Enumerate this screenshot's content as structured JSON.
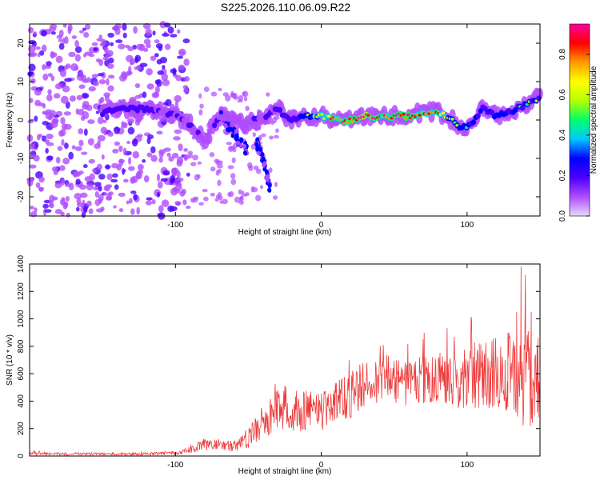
{
  "title": "S225.2026.110.06.09.R22",
  "chart_data": [
    {
      "type": "heatmap",
      "title": "S225.2026.110.06.09.R22",
      "xlabel": "Height of straight line (km)",
      "ylabel": "Frequency (Hz)",
      "xlim": [
        -200,
        150
      ],
      "ylim": [
        -25,
        25
      ],
      "xticks": [
        -100,
        0,
        100
      ],
      "yticks": [
        -20,
        -10,
        0,
        10,
        20
      ],
      "colorbar": {
        "label": "Normalized spectral amplitude",
        "range": [
          0,
          0.95
        ],
        "ticks": [
          0.0,
          0.2,
          0.4,
          0.6,
          0.8
        ],
        "colors": [
          "#e6d9ff",
          "#b04cff",
          "#4a00ff",
          "#0000ff",
          "#00c8ff",
          "#00ff6e",
          "#b4ff00",
          "#ffff00",
          "#ff9a00",
          "#ff0000",
          "#ff00a0"
        ]
      },
      "ridge": {
        "x": [
          -200,
          -190,
          -180,
          -170,
          -160,
          -150,
          -140,
          -130,
          -120,
          -110,
          -100,
          -90,
          -85,
          -80,
          -75,
          -70,
          -65,
          -60,
          -55,
          -50,
          -45,
          -40,
          -35,
          -30,
          -25,
          -20,
          -10,
          0,
          10,
          20,
          30,
          40,
          50,
          60,
          70,
          80,
          90,
          95,
          100,
          105,
          110,
          120,
          130,
          140,
          150
        ],
        "y": [
          2,
          1.5,
          1,
          1.5,
          2,
          2,
          3,
          3,
          3,
          2,
          1,
          -1,
          -3,
          -6,
          -2,
          1,
          1,
          0,
          -1,
          -1,
          0,
          0,
          2,
          3,
          1,
          0,
          1,
          1,
          0,
          0,
          1,
          1,
          1,
          1,
          2,
          2,
          0,
          -2,
          -2,
          0,
          3,
          1,
          2,
          4,
          6
        ],
        "strength": [
          0.25,
          0.25,
          0.25,
          0.3,
          0.3,
          0.3,
          0.35,
          0.35,
          0.35,
          0.3,
          0.25,
          0.25,
          0.3,
          0.25,
          0.25,
          0.25,
          0.25,
          0.2,
          0.2,
          0.25,
          0.3,
          0.3,
          0.3,
          0.3,
          0.35,
          0.4,
          0.5,
          0.7,
          0.85,
          0.9,
          0.9,
          0.88,
          0.9,
          0.85,
          0.8,
          0.85,
          0.6,
          0.5,
          0.5,
          0.45,
          0.4,
          0.45,
          0.45,
          0.5,
          0.5
        ]
      },
      "branches": [
        {
          "x": [
            -70,
            -60,
            -55,
            -50
          ],
          "y": [
            1,
            -3,
            -6,
            -8
          ]
        },
        {
          "x": [
            -45,
            -40,
            -37,
            -35
          ],
          "y": [
            -5,
            -10,
            -15,
            -18
          ]
        }
      ]
    },
    {
      "type": "line",
      "xlabel": "Height of straight line (km)",
      "ylabel": "SNR (10 * v/v)",
      "xlim": [
        -200,
        150
      ],
      "ylim": [
        0,
        1400
      ],
      "xticks": [
        -100,
        0,
        100
      ],
      "yticks": [
        0,
        200,
        400,
        600,
        800,
        1000,
        1200,
        1400
      ],
      "color": "#ee3b3b",
      "series": [
        {
          "name": "SNR",
          "x": [
            -200,
            -180,
            -160,
            -140,
            -120,
            -110,
            -100,
            -90,
            -80,
            -70,
            -60,
            -50,
            -40,
            -30,
            -20,
            -10,
            0,
            10,
            20,
            30,
            40,
            50,
            60,
            70,
            80,
            90,
            100,
            110,
            120,
            130,
            140,
            150
          ],
          "y": [
            20,
            15,
            15,
            15,
            15,
            18,
            25,
            45,
            90,
            85,
            70,
            130,
            250,
            330,
            320,
            330,
            330,
            400,
            440,
            520,
            560,
            560,
            530,
            550,
            600,
            560,
            580,
            600,
            600,
            620,
            560,
            570
          ],
          "spread": [
            15,
            10,
            10,
            10,
            10,
            12,
            15,
            25,
            50,
            40,
            40,
            80,
            120,
            150,
            160,
            150,
            150,
            160,
            170,
            180,
            180,
            180,
            170,
            180,
            200,
            220,
            240,
            250,
            260,
            300,
            380,
            380
          ],
          "peaks": [
            [
              118,
              780
            ],
            [
              126,
              700
            ],
            [
              128,
              900
            ],
            [
              134,
              1050
            ],
            [
              137,
              1380
            ],
            [
              140,
              1320
            ],
            [
              144,
              1050
            ],
            [
              148,
              800
            ]
          ]
        }
      ]
    }
  ]
}
